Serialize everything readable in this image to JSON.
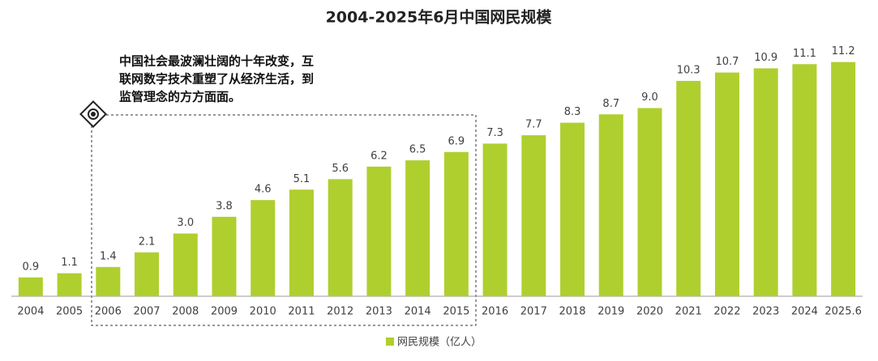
{
  "chart_data": {
    "type": "bar",
    "title": "2004-2025年6月中国网民规模",
    "categories": [
      "2004",
      "2005",
      "2006",
      "2007",
      "2008",
      "2009",
      "2010",
      "2011",
      "2012",
      "2013",
      "2014",
      "2015",
      "2016",
      "2017",
      "2018",
      "2019",
      "2020",
      "2021",
      "2022",
      "2023",
      "2024",
      "2025.6"
    ],
    "series": [
      {
        "name": "网民规模（亿人）",
        "color": "#afcf2f",
        "values": [
          0.9,
          1.1,
          1.4,
          2.1,
          3.0,
          3.8,
          4.6,
          5.1,
          5.6,
          6.2,
          6.5,
          6.9,
          7.3,
          7.7,
          8.3,
          8.7,
          9.0,
          10.3,
          10.7,
          10.9,
          11.1,
          11.2
        ],
        "value_labels": [
          "0.9",
          "1.1",
          "1.4",
          "2.1",
          "3.0",
          "3.8",
          "4.6",
          "5.1",
          "5.6",
          "6.2",
          "6.5",
          "6.9",
          "7.3",
          "7.7",
          "8.3",
          "8.7",
          "9.0",
          "10.3",
          "10.7",
          "10.9",
          "11.1",
          "11.2"
        ]
      }
    ],
    "ylim": [
      0,
      12
    ],
    "annotation": {
      "lines": [
        "中国社会最波澜壮阔的十年改变，互",
        "联网数字技术重塑了从经济生活，到",
        "监管理念的方方面面。"
      ]
    },
    "legend": "bottom"
  }
}
